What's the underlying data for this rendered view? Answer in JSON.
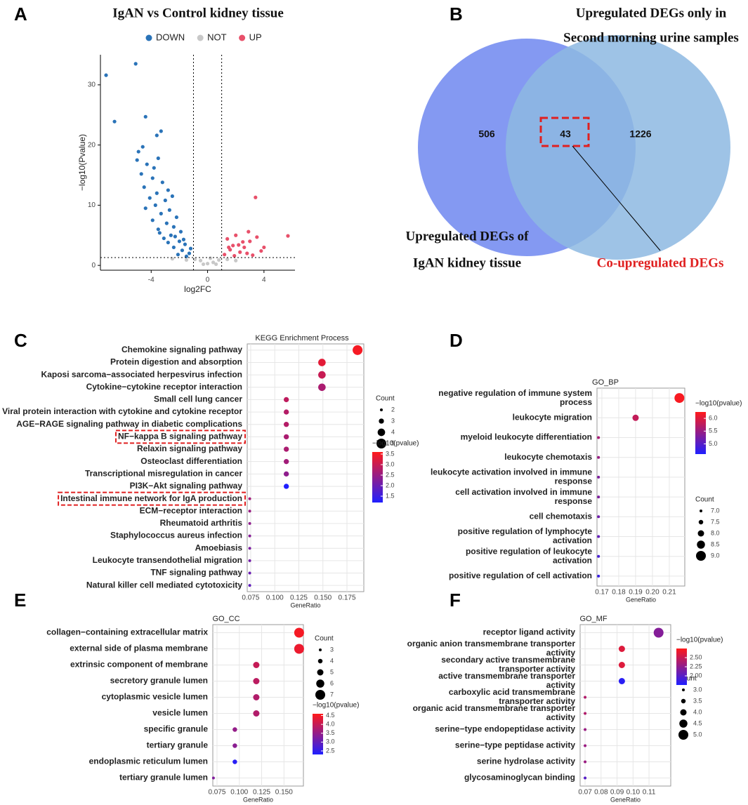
{
  "chart_data": [
    {
      "type": "scatter",
      "panel_label": "A",
      "title": "IgAN vs Control kidney tissue",
      "xlabel": "log2FC",
      "ylabel": "−log10(Pvalue)",
      "xlim": [
        -7.6,
        6.2
      ],
      "ylim": [
        -0.8,
        35
      ],
      "xticks": [
        -4,
        0,
        4
      ],
      "yticks": [
        0,
        10,
        20,
        30
      ],
      "thresholds": {
        "x": [
          -1,
          1
        ],
        "y": 1.3
      },
      "series": [
        {
          "name": "DOWN",
          "color": "#2a73b8",
          "x": [
            -7.2,
            -6.6,
            -5.1,
            -4.4,
            -4.6,
            -3.6,
            -3.3,
            -4.9,
            -5.0,
            -4.3,
            -3.8,
            -3.5,
            -4.7,
            -3.9,
            -3.2,
            -4.5,
            -2.8,
            -3.6,
            -4.1,
            -3.0,
            -2.5,
            -3.7,
            -4.4,
            -2.7,
            -3.3,
            -2.2,
            -3.9,
            -2.9,
            -2.4,
            -3.5,
            -1.9,
            -2.6,
            -3.1,
            -2.0,
            -1.6,
            -2.4,
            -1.8,
            -1.3,
            -2.1,
            -1.5,
            -2.8,
            -3.4,
            -2.3,
            -1.7,
            -1.2
          ],
          "values": [
            31.6,
            23.9,
            33.5,
            24.7,
            19.7,
            21.6,
            22.3,
            18.9,
            17.5,
            16.8,
            16.2,
            17.8,
            15.2,
            14.5,
            13.8,
            13.0,
            12.5,
            12.0,
            11.2,
            10.8,
            11.5,
            10.0,
            9.5,
            9.2,
            8.6,
            8.0,
            7.5,
            7.0,
            6.4,
            6.0,
            5.6,
            5.0,
            4.5,
            4.0,
            3.5,
            3.0,
            2.5,
            2.0,
            1.8,
            1.5,
            3.8,
            5.4,
            4.8,
            4.3,
            2.8
          ]
        },
        {
          "name": "NOT",
          "color": "#c8c8c8",
          "x": [
            -0.9,
            -0.5,
            0,
            0.4,
            0.8,
            -1.5,
            1.4,
            2.0,
            -2.5,
            0.2,
            -0.3,
            0.6
          ],
          "values": [
            1.0,
            0.8,
            0.3,
            0.5,
            0.9,
            0.9,
            1.0,
            0.8,
            1.1,
            1.2,
            0.2,
            0.2
          ]
        },
        {
          "name": "UP",
          "color": "#e8506a",
          "x": [
            5.7,
            3.4,
            3.5,
            2.9,
            2.2,
            2.0,
            1.8,
            2.6,
            3.0,
            1.4,
            1.6,
            2.3,
            2.8,
            3.8,
            1.2,
            1.9,
            3.2,
            2.5,
            1.5,
            4.0
          ],
          "values": [
            4.9,
            11.3,
            4.7,
            5.6,
            3.4,
            5.0,
            3.3,
            3.0,
            4.0,
            4.4,
            2.6,
            2.2,
            2.0,
            2.4,
            1.8,
            1.6,
            1.7,
            3.9,
            3.0,
            3.0
          ]
        }
      ]
    },
    {
      "type": "venn",
      "panel_label": "B",
      "sets": [
        {
          "label": [
            "Upregulated DEGs of",
            "IgAN kidney tissue"
          ],
          "color": "#6f87f0"
        },
        {
          "label": [
            "Upregulated DEGs only in",
            "Second morning urine samples"
          ],
          "color": "#8db8e2"
        }
      ],
      "values": [
        506,
        43,
        1226
      ],
      "annotation": "Co-upregulated DEGs"
    },
    {
      "type": "dot",
      "panel_label": "C",
      "title": "KEGG Enrichment Process",
      "xlabel": "GeneRatio",
      "categories": [
        "Chemokine signaling pathway",
        "Protein digestion and absorption",
        "Kaposi sarcoma−associated herpesvirus infection",
        "Cytokine−cytokine receptor interaction",
        "Small cell lung cancer",
        "Viral protein interaction with cytokine and cytokine receptor",
        "AGE−RAGE signaling pathway in diabetic complications",
        "NF−kappa B signaling pathway",
        "Relaxin signaling pathway",
        "Osteoclast differentiation",
        "Transcriptional misregulation in cancer",
        "PI3K−Akt signaling pathway",
        "Intestinal immune network for IgA production",
        "ECM−receptor interaction",
        "Rheumatoid arthritis",
        "Staphylococcus aureus infection",
        "Amoebiasis",
        "Leukocyte transendothelial migration",
        "TNF signaling pathway",
        "Natural killer cell mediated cytotoxicity"
      ],
      "values": [
        0.186,
        0.149,
        0.149,
        0.149,
        0.112,
        0.112,
        0.112,
        0.112,
        0.112,
        0.112,
        0.112,
        0.112,
        0.074,
        0.074,
        0.074,
        0.074,
        0.074,
        0.074,
        0.074,
        0.074
      ],
      "counts": [
        5,
        4,
        4,
        4,
        3,
        3,
        3,
        3,
        3,
        3,
        3,
        3,
        2,
        2,
        2,
        2,
        2,
        2,
        2,
        2
      ],
      "pvalues": [
        3.5,
        3.3,
        3.0,
        2.7,
        2.9,
        2.8,
        2.8,
        2.7,
        2.7,
        2.6,
        2.4,
        1.2,
        2.6,
        2.5,
        2.4,
        2.3,
        2.2,
        2.1,
        2.0,
        1.9
      ],
      "highlighted": [
        false,
        false,
        false,
        false,
        false,
        false,
        false,
        true,
        false,
        false,
        false,
        false,
        true,
        false,
        false,
        false,
        false,
        false,
        false,
        false
      ],
      "xlim": [
        0.0714,
        0.1925
      ],
      "xticks": [
        0.075,
        {
          "value": 0.1,
          "label": "0.100"
        },
        0.125,
        {
          "value": 0.15,
          "label": "0.150"
        },
        0.175
      ],
      "size_title": "Count",
      "size_ticks": [
        2,
        3,
        4,
        5
      ],
      "color_title": "−log10(pvalue)",
      "clim": [
        1.2,
        3.6
      ],
      "color_ticks": [
        1.5,
        {
          "value": 2,
          "label": "2.0"
        },
        2.5,
        {
          "value": 3,
          "label": "3.0"
        },
        3.5
      ],
      "colors": [
        "#1f1fff",
        "#ff1a1a"
      ]
    },
    {
      "type": "dot",
      "panel_label": "D",
      "title": "GO_BP",
      "xlabel": "GeneRatio",
      "categories": [
        [
          "negative regulation of immune system",
          "process"
        ],
        [
          "leukocyte migration"
        ],
        [
          "myeloid leukocyte differentiation"
        ],
        [
          "leukocyte chemotaxis"
        ],
        [
          "leukocyte activation involved in immune",
          "response"
        ],
        [
          "cell activation involved in immune",
          "response"
        ],
        [
          "cell chemotaxis"
        ],
        [
          "positive regulation of lymphocyte",
          "activation"
        ],
        [
          "positive regulation of leukocyte",
          "activation"
        ],
        [
          "positive regulation of cell activation"
        ]
      ],
      "values": [
        0.216,
        0.19,
        0.168,
        0.168,
        0.168,
        0.168,
        0.168,
        0.168,
        0.168,
        0.168
      ],
      "counts": [
        9,
        8,
        7,
        7,
        7,
        7,
        7,
        7,
        7,
        7
      ],
      "pvalues": [
        6.2,
        5.8,
        5.6,
        5.5,
        5.3,
        5.3,
        5.2,
        5.1,
        4.9,
        4.8
      ],
      "xlim": [
        0.1671,
        0.2192
      ],
      "xticks": [
        0.17,
        0.18,
        0.19,
        {
          "value": 0.2,
          "label": "0.20"
        },
        0.21
      ],
      "size_title": "Count",
      "size_ticks": [
        {
          "value": 7,
          "label": "7.0"
        },
        7.5,
        {
          "value": 8,
          "label": "8.0"
        },
        8.5,
        {
          "value": 9,
          "label": "9.0"
        }
      ],
      "color_title": "−log10(pvalue)",
      "clim": [
        4.6,
        6.25
      ],
      "color_ticks": [
        {
          "value": 5,
          "label": "5.0"
        },
        5.5,
        {
          "value": 6,
          "label": "6.0"
        }
      ],
      "colors": [
        "#1f1fff",
        "#ff1a1a"
      ]
    },
    {
      "type": "dot",
      "panel_label": "E",
      "title": "GO_CC",
      "xlabel": "GeneRatio",
      "categories": [
        "collagen−containing extracellular matrix",
        "external side of plasma membrane",
        "extrinsic component of membrane",
        "secretory granule lumen",
        "cytoplasmic vesicle lumen",
        "vesicle lumen",
        "specific granule",
        "tertiary granule",
        "endoplasmic reticulum lumen",
        "tertiary granule lumen"
      ],
      "values": [
        0.167,
        0.167,
        0.119,
        0.119,
        0.119,
        0.119,
        0.095,
        0.095,
        0.095,
        0.071
      ],
      "counts": [
        7,
        7,
        5,
        5,
        5,
        5,
        4,
        4,
        4,
        3
      ],
      "pvalues": [
        4.5,
        4.4,
        4.0,
        3.9,
        3.8,
        3.8,
        3.5,
        3.4,
        2.4,
        3.3
      ],
      "xlim": [
        0.0703,
        0.1718
      ],
      "xticks": [
        0.075,
        {
          "value": 0.1,
          "label": "0.100"
        },
        0.125,
        {
          "value": 0.15,
          "label": "0.150"
        }
      ],
      "size_title": "Count",
      "size_ticks": [
        3,
        4,
        5,
        6,
        7
      ],
      "color_title": "−log10(pvalue)",
      "clim": [
        2.3,
        4.6
      ],
      "color_ticks": [
        2.5,
        {
          "value": 3,
          "label": "3.0"
        },
        3.5,
        {
          "value": 4,
          "label": "4.0"
        },
        4.5
      ],
      "colors": [
        "#1f1fff",
        "#ff1a1a"
      ]
    },
    {
      "type": "dot",
      "panel_label": "F",
      "title": "GO_MF",
      "xlabel": "GeneRatio",
      "categories": [
        [
          "receptor ligand activity"
        ],
        [
          "organic anion transmembrane transporter",
          "activity"
        ],
        [
          "secondary active transmembrane",
          "transporter activity"
        ],
        [
          "active transmembrane transporter",
          "activity"
        ],
        [
          "carboxylic acid transmembrane",
          "transporter activity"
        ],
        [
          "organic acid transmembrane transporter",
          "activity"
        ],
        [
          "serine−type endopeptidase activity"
        ],
        [
          "serine−type peptidase activity"
        ],
        [
          "serine hydrolase activity"
        ],
        [
          "glycosaminoglycan binding"
        ]
      ],
      "values": [
        0.116,
        0.093,
        0.093,
        0.093,
        0.07,
        0.07,
        0.07,
        0.07,
        0.07,
        0.07
      ],
      "counts": [
        5,
        4,
        4,
        4,
        3,
        3,
        3,
        3,
        3,
        3
      ],
      "pvalues": [
        2.2,
        2.6,
        2.6,
        1.8,
        2.4,
        2.4,
        2.3,
        2.3,
        2.3,
        2.0
      ],
      "xlim": [
        0.0669,
        0.1236
      ],
      "xticks": [
        0.07,
        0.08,
        0.09,
        {
          "value": 0.1,
          "label": "0.10"
        },
        0.11
      ],
      "size_title": "Count",
      "size_ticks": [
        {
          "value": 3,
          "label": "3.0"
        },
        3.5,
        {
          "value": 4,
          "label": "4.0"
        },
        4.5,
        {
          "value": 5,
          "label": "5.0"
        }
      ],
      "color_title": "−log10(pvalue)",
      "clim": [
        1.75,
        2.75
      ],
      "color_ticks": [
        {
          "value": 2,
          "label": "2.00"
        },
        2.25,
        {
          "value": 2.5,
          "label": "2.50"
        }
      ],
      "colors": [
        "#1f1fff",
        "#ff1a1a"
      ]
    }
  ]
}
